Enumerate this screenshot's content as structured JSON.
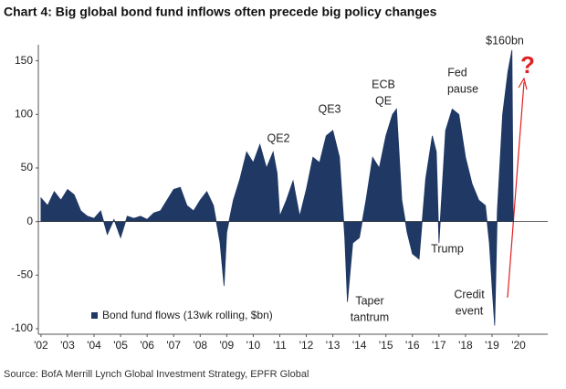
{
  "chart_data": {
    "type": "area",
    "title": "Chart 4: Big global bond fund inflows often precede big policy changes",
    "source": "Source: BofA Merrill Lynch Global Investment Strategy, EPFR Global",
    "color": "#1f3864",
    "xlim": [
      2001.9,
      2021.1
    ],
    "ylim": [
      -100,
      165
    ],
    "xticks": [
      {
        "value": 2002,
        "label": "'02"
      },
      {
        "value": 2003,
        "label": "'03"
      },
      {
        "value": 2004,
        "label": "'04"
      },
      {
        "value": 2005,
        "label": "'05"
      },
      {
        "value": 2006,
        "label": "'06"
      },
      {
        "value": 2007,
        "label": "'07"
      },
      {
        "value": 2008,
        "label": "'08"
      },
      {
        "value": 2009,
        "label": "'09"
      },
      {
        "value": 2010,
        "label": "'10"
      },
      {
        "value": 2011,
        "label": "'11"
      },
      {
        "value": 2012,
        "label": "'12"
      },
      {
        "value": 2013,
        "label": "'13"
      },
      {
        "value": 2014,
        "label": "'14"
      },
      {
        "value": 2015,
        "label": "'15"
      },
      {
        "value": 2016,
        "label": "'16"
      },
      {
        "value": 2017,
        "label": "'17"
      },
      {
        "value": 2018,
        "label": "'18"
      },
      {
        "value": 2019,
        "label": "'19"
      },
      {
        "value": 2020,
        "label": "'20"
      }
    ],
    "yticks": [
      -100,
      -50,
      0,
      50,
      100,
      150
    ],
    "series": [
      {
        "name": "Bond fund flows (13wk rolling, $bn)",
        "color": "#1f3864",
        "x": [
          2002.0,
          2002.25,
          2002.5,
          2002.75,
          2003.0,
          2003.25,
          2003.5,
          2003.75,
          2004.0,
          2004.25,
          2004.5,
          2004.75,
          2005.0,
          2005.25,
          2005.5,
          2005.75,
          2006.0,
          2006.25,
          2006.5,
          2006.75,
          2007.0,
          2007.25,
          2007.5,
          2007.75,
          2008.0,
          2008.25,
          2008.5,
          2008.75,
          2008.9,
          2009.0,
          2009.25,
          2009.5,
          2009.75,
          2010.0,
          2010.25,
          2010.5,
          2010.75,
          2010.9,
          2011.0,
          2011.25,
          2011.5,
          2011.75,
          2012.0,
          2012.25,
          2012.5,
          2012.75,
          2013.0,
          2013.25,
          2013.45,
          2013.55,
          2013.75,
          2014.0,
          2014.25,
          2014.5,
          2014.75,
          2015.0,
          2015.25,
          2015.4,
          2015.6,
          2015.8,
          2016.0,
          2016.25,
          2016.5,
          2016.75,
          2016.9,
          2017.0,
          2017.25,
          2017.5,
          2017.75,
          2018.0,
          2018.25,
          2018.5,
          2018.75,
          2018.9,
          2019.0,
          2019.1,
          2019.2,
          2019.4,
          2019.6,
          2019.75,
          2019.8
        ],
        "values": [
          22,
          15,
          28,
          20,
          30,
          25,
          10,
          5,
          3,
          10,
          -12,
          2,
          -15,
          5,
          3,
          5,
          2,
          8,
          10,
          20,
          30,
          32,
          15,
          10,
          20,
          28,
          15,
          -20,
          -60,
          -10,
          20,
          40,
          65,
          55,
          72,
          50,
          65,
          45,
          5,
          20,
          38,
          5,
          30,
          60,
          55,
          80,
          85,
          60,
          -15,
          -75,
          -20,
          -15,
          20,
          60,
          50,
          80,
          100,
          105,
          20,
          -10,
          -30,
          -35,
          40,
          80,
          65,
          -20,
          85,
          105,
          100,
          60,
          35,
          20,
          15,
          -20,
          -60,
          -97,
          10,
          100,
          140,
          160,
          0
        ]
      }
    ],
    "annotations": [
      [
        "QE2"
      ],
      [
        "QE3"
      ],
      [
        "ECB",
        "QE"
      ],
      [
        "Fed",
        "pause"
      ],
      [
        "Trump"
      ],
      [
        "Taper",
        "tantrum"
      ],
      [
        "Credit",
        "event"
      ],
      [
        "$160bn"
      ],
      [
        "?"
      ]
    ]
  }
}
